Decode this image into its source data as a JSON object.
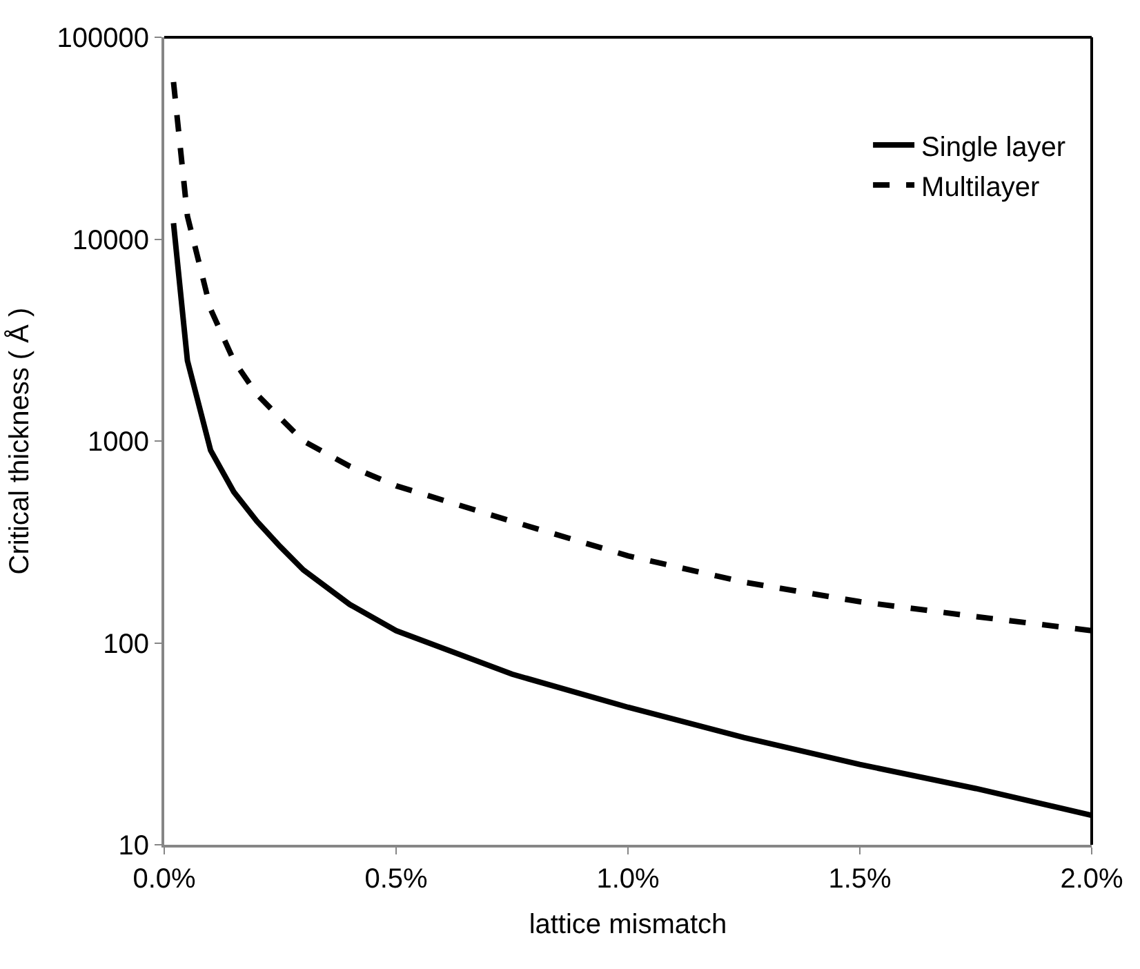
{
  "chart_data": {
    "type": "line",
    "xlabel": "lattice mismatch",
    "ylabel": "Critical thickness ( Å )",
    "log": "y",
    "xlim": [
      0,
      0.02
    ],
    "ylim": [
      10,
      100000
    ],
    "xticks": [
      {
        "value": 0,
        "label": "0.0%"
      },
      {
        "value": 0.005,
        "label": "0.5%"
      },
      {
        "value": 0.01,
        "label": "1.0%"
      },
      {
        "value": 0.015,
        "label": "1.5%"
      },
      {
        "value": 0.02,
        "label": "2.0%"
      }
    ],
    "yticks": [
      10,
      100,
      1000,
      10000,
      100000
    ],
    "legend": "top right",
    "marker": "none",
    "series": [
      {
        "name": "Single layer",
        "color": "#000000",
        "line_style": "solid",
        "x": [
          0.0002,
          0.0005,
          0.001,
          0.0015,
          0.002,
          0.0025,
          0.003,
          0.004,
          0.005,
          0.0075,
          0.01,
          0.0125,
          0.015,
          0.0175,
          0.02
        ],
        "values": [
          12000,
          2500,
          900,
          560,
          400,
          300,
          230,
          155,
          115,
          70,
          48,
          34,
          25,
          19,
          14
        ]
      },
      {
        "name": "Multilayer",
        "color": "#000000",
        "line_style": "dashed",
        "x": [
          0.0002,
          0.0005,
          0.001,
          0.0015,
          0.002,
          0.0025,
          0.003,
          0.004,
          0.005,
          0.0075,
          0.01,
          0.0125,
          0.015,
          0.0175,
          0.02
        ],
        "values": [
          60000,
          13000,
          4500,
          2500,
          1700,
          1300,
          1000,
          750,
          600,
          400,
          270,
          200,
          160,
          135,
          115
        ]
      }
    ]
  }
}
